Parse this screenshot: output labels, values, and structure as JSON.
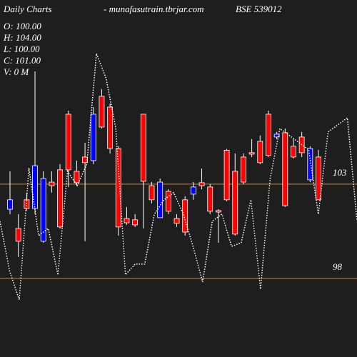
{
  "chart_data": {
    "type": "candlestick",
    "title": "Daily Charts",
    "subtitle": "- munafasutrain.tbrjar.com",
    "symbol": "BSE 539012",
    "info": [
      "O: 100.00",
      "H: 104.00",
      "L: 100.00",
      "C: 101.00",
      "V: 0  M"
    ],
    "up_color": "#0000ff",
    "down_color": "#ff0000",
    "open": [
      101.67,
      100.65,
      102.17,
      101.71,
      99.97,
      103.11,
      103.76,
      106.71,
      103.68,
      104.44,
      104.25,
      107.66,
      107.09,
      104.89,
      101.18,
      101.11,
      106.71,
      102.92,
      101.22,
      102.62,
      101.18,
      102.17,
      102.47,
      103.08,
      102.85,
      101.6,
      104.8,
      103.68,
      104.44,
      104.67,
      105.27,
      106.71,
      105.5,
      105.73,
      105.01,
      105.5,
      103.23,
      104.44
    ],
    "high": [
      103.68,
      101.41,
      102.55,
      108.98,
      103.68,
      103.68,
      104.06,
      106.9,
      104.25,
      105.2,
      107.09,
      108.04,
      107.28,
      105.01,
      101.79,
      101.41,
      106.71,
      103.11,
      103.3,
      102.73,
      101.41,
      102.36,
      103.11,
      103.83,
      103.0,
      101.67,
      104.87,
      104.63,
      104.63,
      105.39,
      105.58,
      106.9,
      105.77,
      105.95,
      105.39,
      105.77,
      105.01,
      104.82
    ],
    "low": [
      101.41,
      99.14,
      101.6,
      101.41,
      99.89,
      102.55,
      100.65,
      102.85,
      102.92,
      99.97,
      104.06,
      105.95,
      104.63,
      100.27,
      100.84,
      100.73,
      100.65,
      101.98,
      101.22,
      101.41,
      100.73,
      100.27,
      102.17,
      102.73,
      101.41,
      99.89,
      102.09,
      100.27,
      103.0,
      104.44,
      104.06,
      104.44,
      105.39,
      101.79,
      104.36,
      104.44,
      103.11,
      102.17
    ],
    "close": [
      102.17,
      99.97,
      101.71,
      103.98,
      103.3,
      102.92,
      100.73,
      103.76,
      103.08,
      104.14,
      106.71,
      106.03,
      104.89,
      100.73,
      100.95,
      100.84,
      103.15,
      102.17,
      103.11,
      101.56,
      100.92,
      100.46,
      102.85,
      102.92,
      101.56,
      101.52,
      102.17,
      100.35,
      103.11,
      104.59,
      104.14,
      104.52,
      105.65,
      101.86,
      104.44,
      104.67,
      104.89,
      102.17
    ],
    "line": {
      "color": "#ffffff",
      "values": [
        101.03,
        98.38,
        96.86,
        103.87,
        100.27,
        100.65,
        98.19,
        103.68,
        102.92,
        104.06,
        109.93,
        108.61,
        105.95,
        98.19,
        98.76,
        98.76,
        101.41,
        102.17,
        102.55,
        101.41,
        99.7,
        97.81,
        101.03,
        101.41,
        99.7,
        99.89,
        102.17,
        97.43,
        103.3,
        105.95,
        105.58,
        105.2,
        104.82,
        101.41,
        105.77,
        106.14,
        106.52,
        101.03
      ]
    },
    "ylim": [
      93.83,
      112.77
    ],
    "yticks": [
      98,
      103
    ],
    "grid": true,
    "grid_color": "#d98a1a"
  }
}
